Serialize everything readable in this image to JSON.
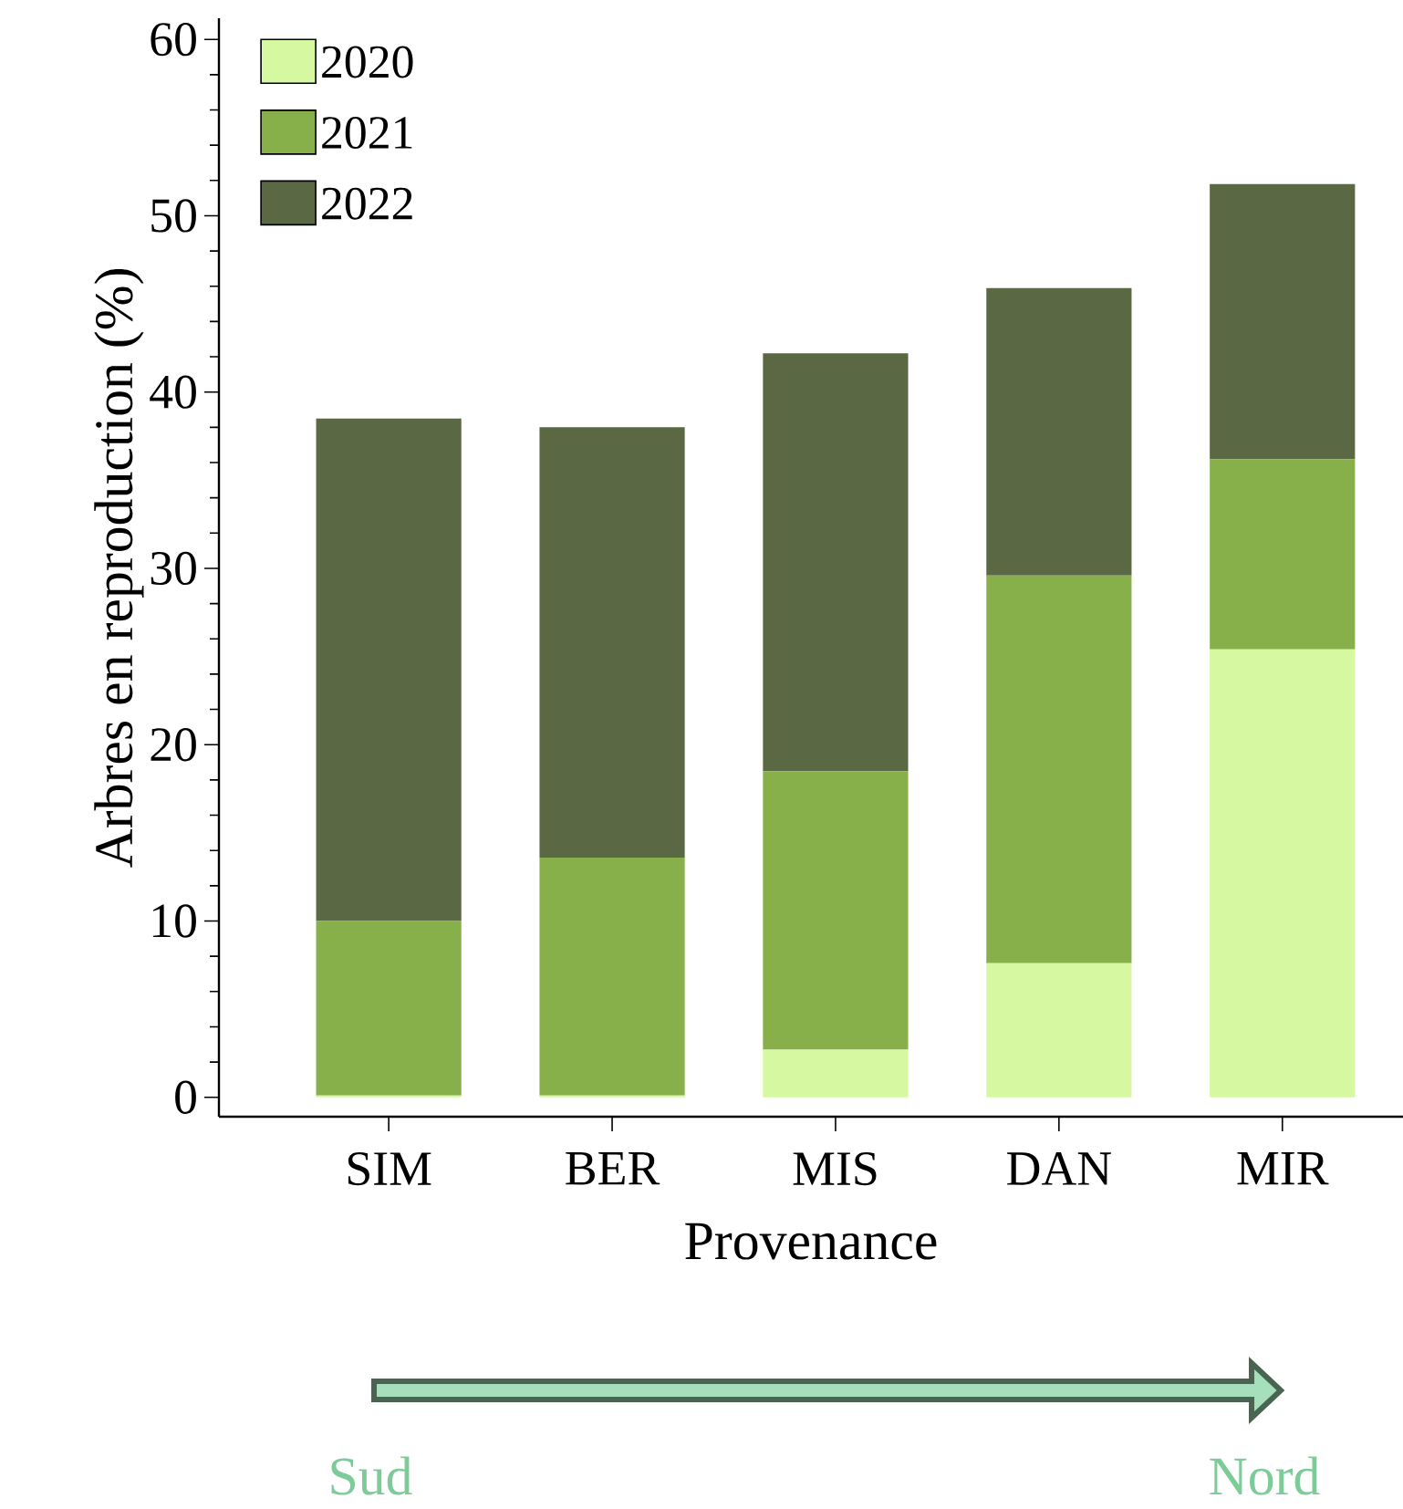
{
  "chart_data": {
    "type": "bar",
    "stacked": true,
    "xlabel": "Provenance",
    "ylabel": "Arbres en reproduction (%)",
    "categories": [
      "SIM",
      "BER",
      "MIS",
      "DAN",
      "MIR"
    ],
    "series": [
      {
        "name": "2020",
        "color": "#d6f8a0",
        "values": [
          0.1,
          0.1,
          2.7,
          7.6,
          25.4
        ]
      },
      {
        "name": "2021",
        "color": "#87b04a",
        "values": [
          9.9,
          13.5,
          15.8,
          22.0,
          10.8
        ]
      },
      {
        "name": "2022",
        "color": "#5a6843",
        "values": [
          28.5,
          24.4,
          23.7,
          16.3,
          15.6
        ]
      }
    ],
    "ylim": [
      -1.1,
      61.2
    ],
    "yticks": [
      0,
      10,
      20,
      30,
      40,
      50,
      60
    ],
    "legend": "top left",
    "grid": false,
    "annotations": [
      "Sud",
      "Nord"
    ]
  }
}
